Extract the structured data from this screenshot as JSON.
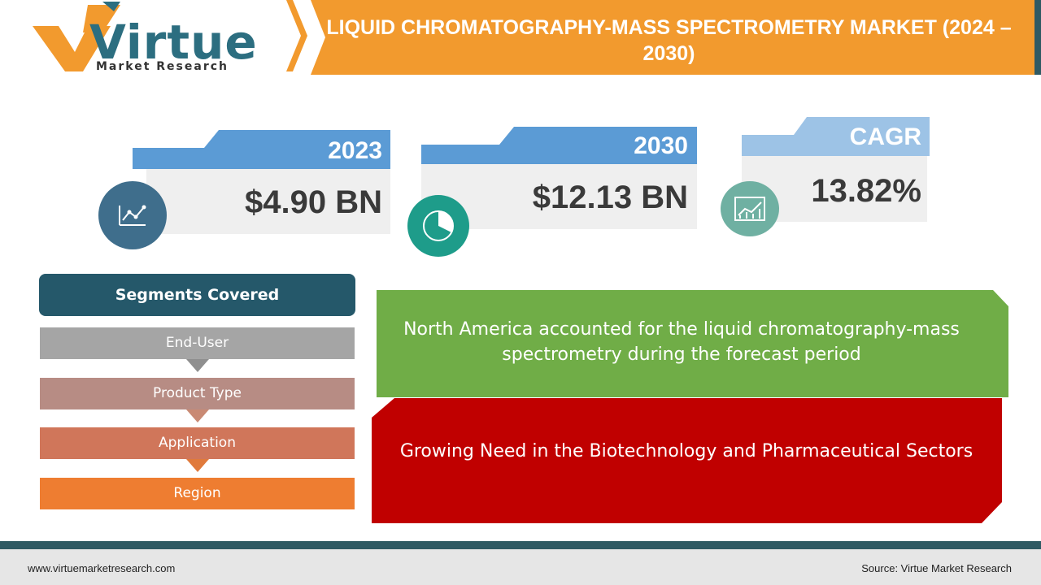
{
  "logo": {
    "word": "Virtue",
    "subtitle": "Market Research"
  },
  "title": "LIQUID CHROMATOGRAPHY-MASS SPECTROMETRY MARKET (2024 – 2030)",
  "stats": [
    {
      "year": "2023",
      "value": "$4.90 BN",
      "icon": "line-chart-icon"
    },
    {
      "year": "2030",
      "value": "$12.13 BN",
      "icon": "pie-chart-icon"
    },
    {
      "year": "CAGR",
      "value": "13.82%",
      "icon": "growth-chart-icon"
    }
  ],
  "segments": {
    "heading": "Segments Covered",
    "items": [
      "End-User",
      "Product Type",
      "Application",
      "Region"
    ]
  },
  "highlights": {
    "region": "North America accounted for the liquid chromatography-mass spectrometry during the forecast period",
    "driver": "Growing Need in the Biotechnology and Pharmaceutical Sectors"
  },
  "footer": {
    "url": "www.virtuemarketresearch.com",
    "source": "Source:  Virtue Market Research"
  },
  "colors": {
    "orange": "#f29a2e",
    "teal_dark": "#25586a",
    "blue_tab": "#5b9bd5",
    "green_box": "#70ad47",
    "red_box": "#c00000"
  }
}
